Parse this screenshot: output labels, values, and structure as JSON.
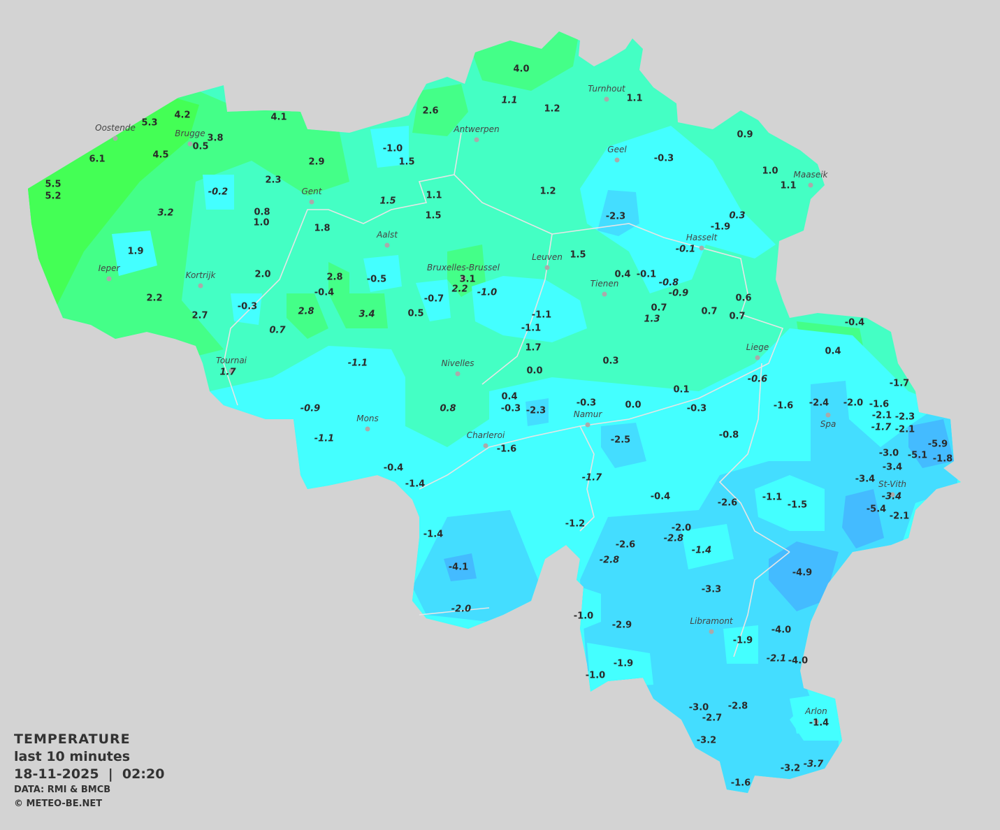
{
  "legend": {
    "title": "TEMPERATURE",
    "period": "last 10 minutes",
    "datetime": "18-11-2025  |  02:20",
    "source": "DATA: RMI & BMCB",
    "copyright": "© METEO-BE.NET"
  },
  "colors": {
    "background": "#d3d3d3",
    "warm_green": "#44ff55",
    "green": "#44ff88",
    "mint": "#44ffc4",
    "cyan": "#44ffff",
    "light_blue": "#44ddff",
    "blue": "#44bbff",
    "borders": "#e6e6e6"
  },
  "units": "°C",
  "cities": [
    "Oostende",
    "Brugge",
    "Antwerpen",
    "Turnhout",
    "Geel",
    "Maaseik",
    "Gent",
    "Hasselt",
    "Aalst",
    "Leuven",
    "Bruxelles-Brussel",
    "Ieper",
    "Kortrijk",
    "Tienen",
    "Liege",
    "Tournai",
    "Nivelles",
    "Spa",
    "Mons",
    "Namur",
    "Charleroi",
    "St-Vith",
    "Libramont",
    "Arlon"
  ],
  "stations": [
    {
      "v": "4.0"
    },
    {
      "v": "1.1",
      "it": true
    },
    {
      "v": "1.2"
    },
    {
      "v": "1.1"
    },
    {
      "v": "4.2"
    },
    {
      "v": "5.3"
    },
    {
      "v": "4.1"
    },
    {
      "v": "2.6"
    },
    {
      "v": "3.8"
    },
    {
      "v": "0.5"
    },
    {
      "v": "-1.0"
    },
    {
      "v": "1.5"
    },
    {
      "v": "0.9"
    },
    {
      "v": "6.1"
    },
    {
      "v": "4.5"
    },
    {
      "v": "2.9"
    },
    {
      "v": "-0.3"
    },
    {
      "v": "5.5"
    },
    {
      "v": "5.2"
    },
    {
      "v": "-0.2",
      "it": true
    },
    {
      "v": "2.3"
    },
    {
      "v": "1.0"
    },
    {
      "v": "1.1"
    },
    {
      "v": "1.2"
    },
    {
      "v": "1.1"
    },
    {
      "v": "1.5",
      "it": true
    },
    {
      "v": "3.2",
      "it": true
    },
    {
      "v": "0.8"
    },
    {
      "v": "1.0"
    },
    {
      "v": "1.5"
    },
    {
      "v": "-2.3"
    },
    {
      "v": "0.3",
      "it": true
    },
    {
      "v": "-1.9"
    },
    {
      "v": "1.8"
    },
    {
      "v": "-0.1",
      "it": true
    },
    {
      "v": "1.9"
    },
    {
      "v": "1.5"
    },
    {
      "v": "2.0"
    },
    {
      "v": "2.8"
    },
    {
      "v": "-0.5"
    },
    {
      "v": "3.1"
    },
    {
      "v": "2.2",
      "it": true
    },
    {
      "v": "-1.0",
      "it": true
    },
    {
      "v": "0.4"
    },
    {
      "v": "-0.1"
    },
    {
      "v": "-0.8",
      "it": true
    },
    {
      "v": "-0.9",
      "it": true
    },
    {
      "v": "-0.4"
    },
    {
      "v": "-0.7"
    },
    {
      "v": "-0.3"
    },
    {
      "v": "2.2"
    },
    {
      "v": "2.8",
      "it": true
    },
    {
      "v": "3.4",
      "it": true
    },
    {
      "v": "0.5"
    },
    {
      "v": "-1.1"
    },
    {
      "v": "0.7"
    },
    {
      "v": "1.3",
      "it": true
    },
    {
      "v": "0.7"
    },
    {
      "v": "0.6"
    },
    {
      "v": "0.7"
    },
    {
      "v": "2.7"
    },
    {
      "v": "0.7",
      "it": true
    },
    {
      "v": "-1.1"
    },
    {
      "v": "-0.4"
    },
    {
      "v": "1.7"
    },
    {
      "v": "0.4"
    },
    {
      "v": "-1.1",
      "it": true
    },
    {
      "v": "0.3"
    },
    {
      "v": "1.7",
      "it": true
    },
    {
      "v": "0.0"
    },
    {
      "v": "-0.6",
      "it": true
    },
    {
      "v": "0.1"
    },
    {
      "v": "-1.7"
    },
    {
      "v": "0.4"
    },
    {
      "v": "-0.3"
    },
    {
      "v": "-2.3"
    },
    {
      "v": "-0.3"
    },
    {
      "v": "0.0"
    },
    {
      "v": "-0.3"
    },
    {
      "v": "-0.9",
      "it": true
    },
    {
      "v": "0.8",
      "it": true
    },
    {
      "v": "-1.6"
    },
    {
      "v": "-2.4"
    },
    {
      "v": "-2.0"
    },
    {
      "v": "-1.6"
    },
    {
      "v": "-2.1"
    },
    {
      "v": "-2.3"
    },
    {
      "v": "-1.7",
      "it": true
    },
    {
      "v": "-2.1"
    },
    {
      "v": "-1.1",
      "it": true
    },
    {
      "v": "-2.5"
    },
    {
      "v": "-0.8"
    },
    {
      "v": "-1.6"
    },
    {
      "v": "-3.0"
    },
    {
      "v": "-5.1"
    },
    {
      "v": "-5.9"
    },
    {
      "v": "-1.8"
    },
    {
      "v": "-3.4"
    },
    {
      "v": "-0.4"
    },
    {
      "v": "-1.4"
    },
    {
      "v": "-1.7",
      "it": true
    },
    {
      "v": "-3.4"
    },
    {
      "v": "-0.4"
    },
    {
      "v": "-2.6"
    },
    {
      "v": "-1.1"
    },
    {
      "v": "-1.5"
    },
    {
      "v": "-3.4",
      "it": true
    },
    {
      "v": "-5.4"
    },
    {
      "v": "-2.1"
    },
    {
      "v": "-1.2"
    },
    {
      "v": "-1.4"
    },
    {
      "v": "-2.0"
    },
    {
      "v": "-2.8",
      "it": true
    },
    {
      "v": "-2.6"
    },
    {
      "v": "-1.4",
      "it": true
    },
    {
      "v": "-2.8",
      "it": true
    },
    {
      "v": "-4.1"
    },
    {
      "v": "-4.9"
    },
    {
      "v": "-3.3"
    },
    {
      "v": "-2.0",
      "it": true
    },
    {
      "v": "-1.0"
    },
    {
      "v": "-2.9"
    },
    {
      "v": "-1.9"
    },
    {
      "v": "-4.0"
    },
    {
      "v": "-2.1",
      "it": true
    },
    {
      "v": "-4.0"
    },
    {
      "v": "-1.9"
    },
    {
      "v": "-1.0"
    },
    {
      "v": "-3.0"
    },
    {
      "v": "-2.8"
    },
    {
      "v": "-2.7"
    },
    {
      "v": "-1.4"
    },
    {
      "v": "-3.2"
    },
    {
      "v": "-3.2"
    },
    {
      "v": "-3.7",
      "it": true
    },
    {
      "v": "-1.6"
    }
  ]
}
